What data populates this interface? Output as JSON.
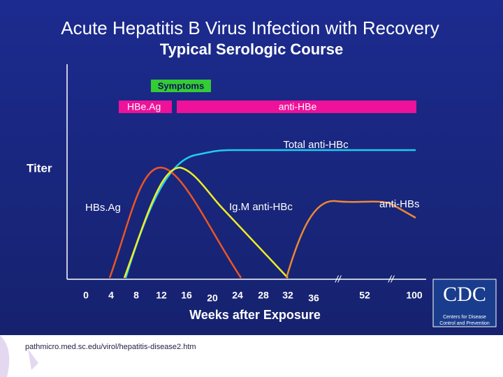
{
  "header": {
    "title": "Acute Hepatitis B Virus Infection with Recovery",
    "subtitle": "Typical Serologic Course"
  },
  "axes": {
    "y_label": "Titer",
    "x_label": "Weeks after Exposure",
    "x_ticks": [
      0,
      4,
      8,
      12,
      16,
      20,
      24,
      28,
      32,
      36,
      52,
      100
    ]
  },
  "bars": {
    "symptoms": "Symptoms",
    "hbeag": "HBe.Ag",
    "anti_hbe": "anti-HBe"
  },
  "curves": {
    "total_anti_hbc": "Total anti-HBc",
    "hbsag": "HBs.Ag",
    "igm_anti_hbc": "Ig.M anti-HBc",
    "anti_hbs": "anti-HBs"
  },
  "source": "pathmicro.med.sc.edu/virol/hepatitis-disease2.htm",
  "logo": {
    "name": "CDC",
    "line1": "Centers for Disease",
    "line2": "Control and Prevention"
  }
}
